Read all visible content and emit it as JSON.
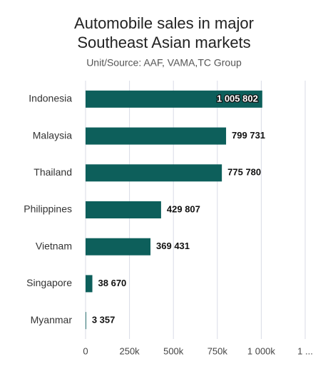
{
  "chart_data": {
    "type": "bar",
    "orientation": "horizontal",
    "title": [
      "Automobile sales in major",
      "Southeast Asian markets"
    ],
    "subtitle": "Unit/Source: AAF, VAMA,TC Group",
    "categories": [
      "Indonesia",
      "Malaysia",
      "Thailand",
      "Philippines",
      "Vietnam",
      "Singapore",
      "Myanmar"
    ],
    "values": [
      1005802,
      799731,
      775780,
      429807,
      369431,
      38670,
      3357
    ],
    "value_labels": [
      "1 005 802",
      "799 731",
      "775 780",
      "429 807",
      "369 431",
      "38 670",
      "3 357"
    ],
    "color": "#0d5f5b",
    "xlim": [
      0,
      1250000
    ],
    "xticks": [
      0,
      {
        "value": 250000,
        "label": "250k"
      },
      {
        "value": 500000,
        "label": "500k"
      },
      {
        "value": 750000,
        "label": "750k"
      },
      {
        "value": 1000000,
        "label": "1 000k"
      },
      {
        "value": 1250000,
        "label": "1 ..."
      }
    ],
    "grid": true
  }
}
